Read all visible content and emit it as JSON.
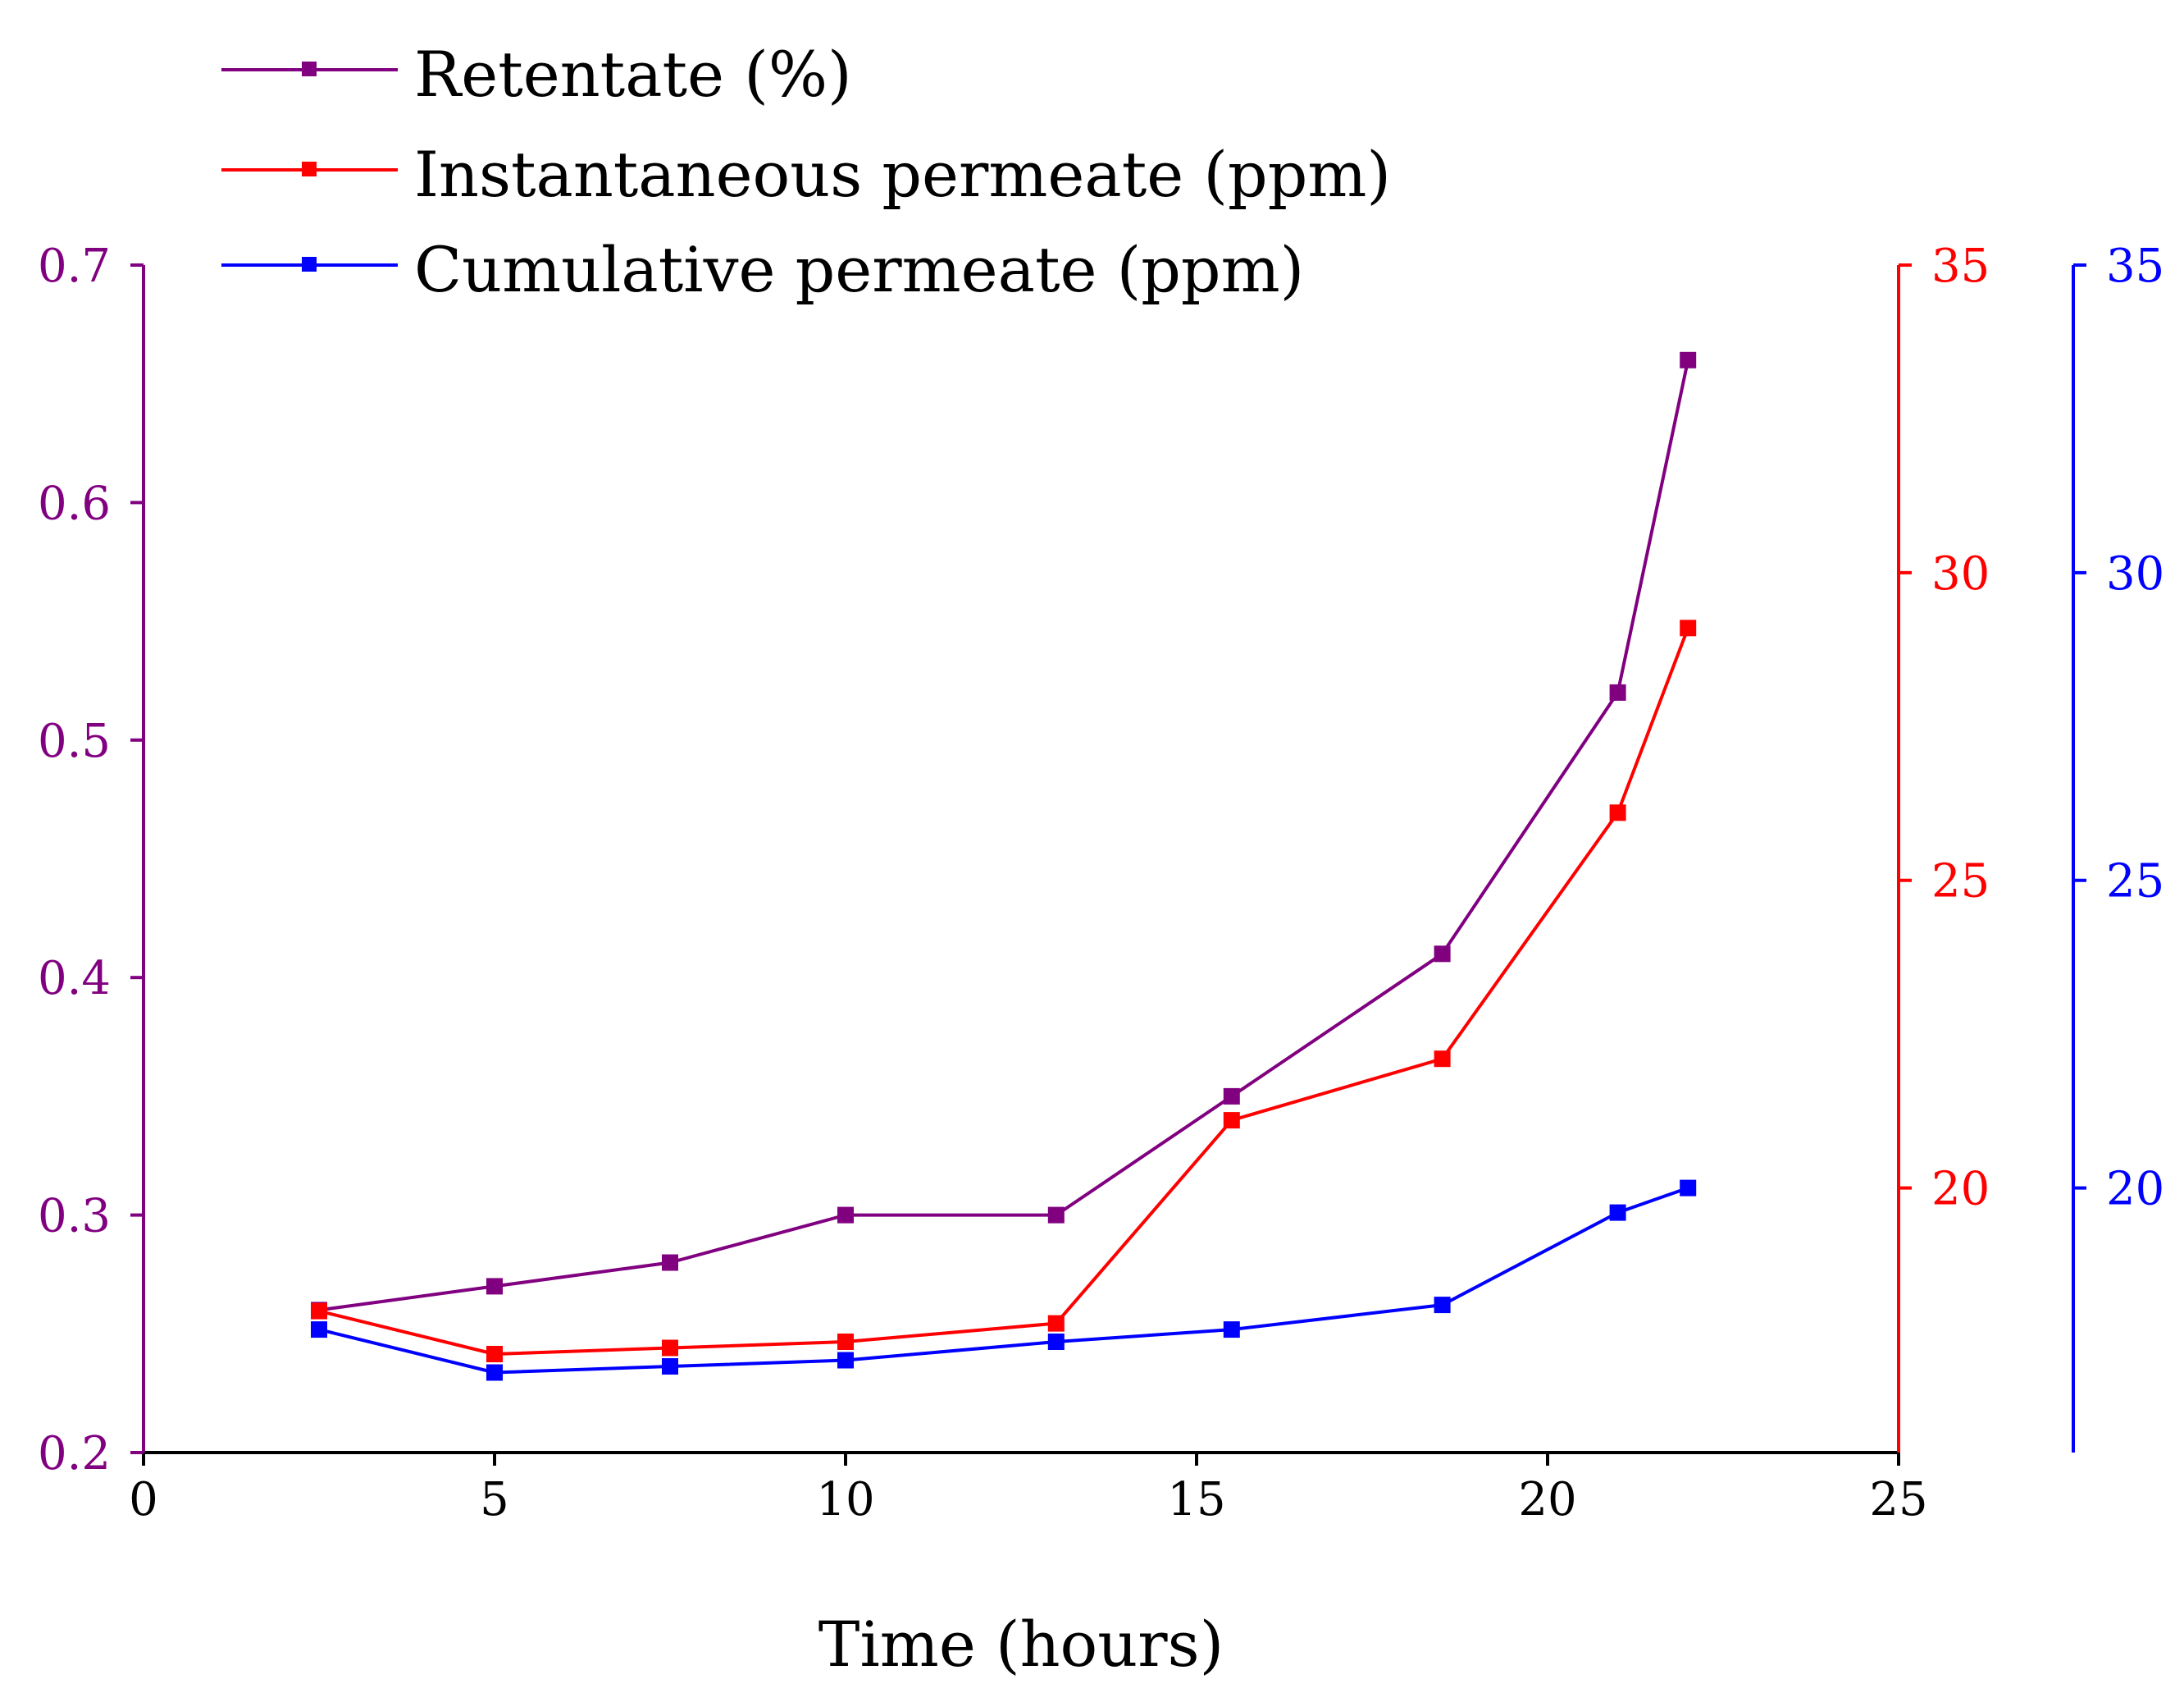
{
  "chart_data": {
    "type": "line",
    "title": "",
    "xlabel": "Time (hours)",
    "xlim": [
      0,
      25
    ],
    "x_ticks": [
      "0",
      "5",
      "10",
      "15",
      "20",
      "25"
    ],
    "grid": false,
    "legend_position": "top-left",
    "axes": {
      "left": {
        "ylim": [
          0.2,
          0.7
        ],
        "ticks": [
          "0.2",
          "0.3",
          "0.4",
          "0.5",
          "0.6",
          "0.7"
        ],
        "color": "#800080"
      },
      "right1": {
        "ylim": [
          15.7,
          35
        ],
        "ticks": [
          "20",
          "25",
          "30",
          "35"
        ],
        "color": "#ff0000"
      },
      "right2": {
        "ylim": [
          15.7,
          35
        ],
        "ticks": [
          "20",
          "25",
          "30",
          "35"
        ],
        "color": "#0000ff"
      }
    },
    "series": [
      {
        "name": "Retentate (%)",
        "axis": "left",
        "color": "#800080",
        "x": [
          2.5,
          5,
          7.5,
          10,
          13,
          15.5,
          18.5,
          21,
          22
        ],
        "values": [
          0.26,
          0.27,
          0.28,
          0.3,
          0.3,
          0.35,
          0.41,
          0.52,
          0.66
        ]
      },
      {
        "name": "Instantaneous permeate (ppm)",
        "axis": "right1",
        "color": "#ff0000",
        "x": [
          2.5,
          5,
          7.5,
          10,
          13,
          15.5,
          18.5,
          21,
          22
        ],
        "values": [
          18.0,
          17.3,
          17.4,
          17.5,
          17.8,
          21.1,
          22.1,
          26.1,
          29.1
        ]
      },
      {
        "name": "Cumulative permeate (ppm)",
        "axis": "right2",
        "color": "#0000ff",
        "x": [
          2.5,
          5,
          7.5,
          10,
          13,
          15.5,
          18.5,
          21,
          22
        ],
        "values": [
          17.7,
          17.0,
          17.1,
          17.2,
          17.5,
          17.7,
          18.1,
          19.6,
          20.0
        ]
      }
    ]
  }
}
